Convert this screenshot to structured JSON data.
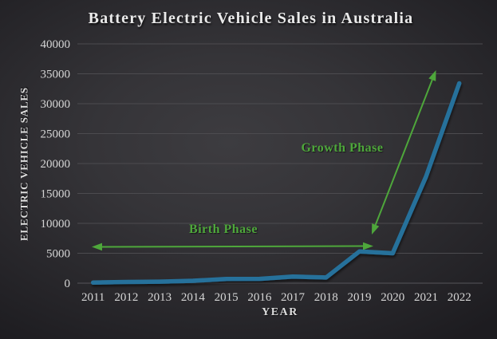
{
  "title": "Battery Electric Vehicle Sales in Australia",
  "chart_data": {
    "type": "line",
    "title": "Battery Electric Vehicle Sales in Australia",
    "xlabel": "YEAR",
    "ylabel": "ELECTRIC VEHICLE SALES",
    "x": [
      2011,
      2012,
      2013,
      2014,
      2015,
      2016,
      2017,
      2018,
      2019,
      2020,
      2021,
      2022
    ],
    "values": [
      100,
      200,
      250,
      400,
      700,
      720,
      1100,
      950,
      5300,
      5000,
      17800,
      33400
    ],
    "ylim": [
      0,
      40000
    ],
    "yticks": [
      0,
      5000,
      10000,
      15000,
      20000,
      25000,
      30000,
      35000,
      40000
    ],
    "grid": "horizontal",
    "legend_position": "none"
  },
  "annotations": {
    "birth_phase": {
      "label": "Birth Phase"
    },
    "growth_phase": {
      "label": "Growth Phase"
    }
  },
  "colors": {
    "line": "#27719b",
    "annotation_green": "#4ea73b",
    "grid": "#4c4b4f",
    "axis_line": "#56555a",
    "tick_text": "#d6d6d6"
  }
}
